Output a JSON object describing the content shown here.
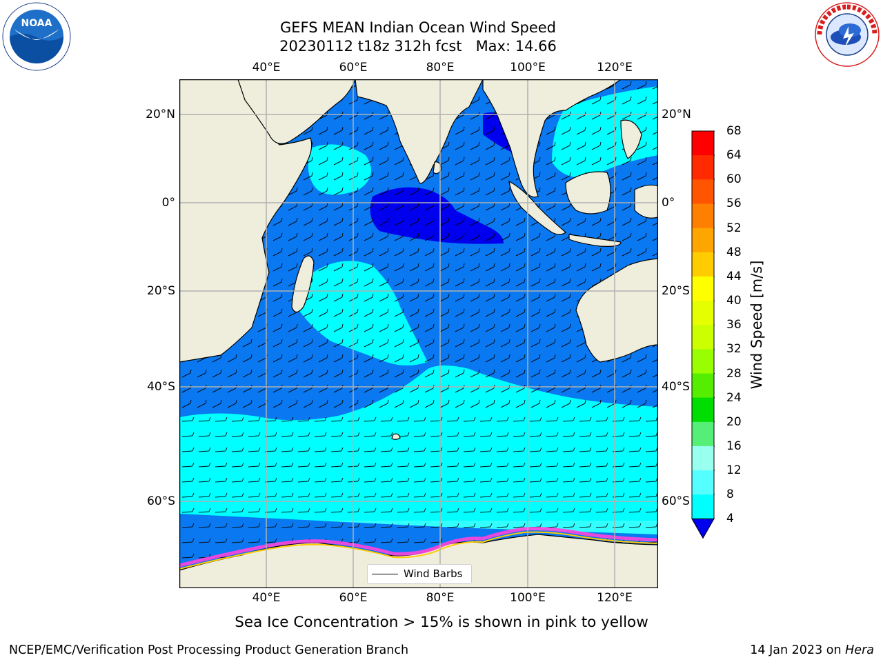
{
  "title": {
    "line1": "GEFS MEAN Indian Ocean Wind Speed",
    "line2": "20230112 t18z 312h fcst   Max: 14.66"
  },
  "map": {
    "lon_ticks_top": [
      "40°E",
      "60°E",
      "80°E",
      "100°E",
      "120°E"
    ],
    "lon_ticks_bottom": [
      "40°E",
      "60°E",
      "80°E",
      "100°E",
      "120°E"
    ],
    "lat_ticks_left": [
      "20°N",
      "0°",
      "20°S",
      "40°S",
      "60°S"
    ],
    "lat_ticks_right": [
      "20°N",
      "0°",
      "20°S",
      "40°S",
      "60°S"
    ],
    "legend_label": "Wind Barbs",
    "land_color": "#efeedd",
    "grid_color": "#b0b0b0"
  },
  "colorbar": {
    "label": "Wind Speed [m/s]",
    "ticks": [
      "68",
      "64",
      "60",
      "56",
      "52",
      "48",
      "44",
      "40",
      "36",
      "32",
      "28",
      "24",
      "20",
      "16",
      "12",
      "8",
      "4"
    ],
    "colors": [
      "#ff0000",
      "#ff2a00",
      "#ff5500",
      "#ff7f00",
      "#ffa500",
      "#ffcc00",
      "#ffff00",
      "#e6ff00",
      "#ccff00",
      "#99ff00",
      "#55ee00",
      "#00dd00",
      "#55ee77",
      "#99ffee",
      "#55ffff",
      "#00ffff",
      "#0077ff"
    ],
    "under_color": "#0000ee"
  },
  "subtitle": "Sea Ice Concentration > 15% is shown in pink to yellow",
  "footer": {
    "left": "NCEP/EMC/Verification Post Processing Product Generation Branch",
    "right_date": "14 Jan 2023 on ",
    "right_host": "Hera"
  },
  "logos": {
    "left_text": "NOAA",
    "right_text": "NATIONAL WEATHER SERVICE"
  }
}
